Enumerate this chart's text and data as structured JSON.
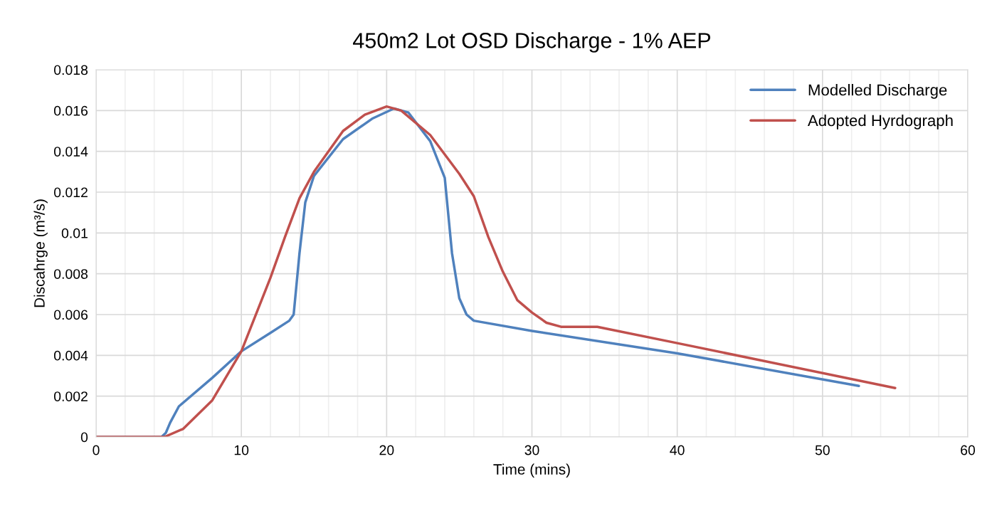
{
  "chart_data": {
    "type": "line",
    "title": "450m2 Lot OSD Discharge - 1% AEP",
    "xlabel": "Time (mins)",
    "ylabel": "Discahrge (m³/s)",
    "xlim": [
      0,
      60
    ],
    "ylim": [
      0,
      0.018
    ],
    "xticks": [
      0,
      {
        "value": 2,
        "label": null
      },
      {
        "value": 4,
        "label": null
      },
      {
        "value": 6,
        "label": null
      },
      {
        "value": 8,
        "label": null
      },
      10,
      {
        "value": 12,
        "label": null
      },
      {
        "value": 14,
        "label": null
      },
      {
        "value": 16,
        "label": null
      },
      {
        "value": 18,
        "label": null
      },
      20,
      {
        "value": 22,
        "label": null
      },
      {
        "value": 24,
        "label": null
      },
      {
        "value": 26,
        "label": null
      },
      {
        "value": 28,
        "label": null
      },
      30,
      {
        "value": 32,
        "label": null
      },
      {
        "value": 34,
        "label": null
      },
      {
        "value": 36,
        "label": null
      },
      {
        "value": 38,
        "label": null
      },
      40,
      {
        "value": 42,
        "label": null
      },
      {
        "value": 44,
        "label": null
      },
      {
        "value": 46,
        "label": null
      },
      {
        "value": 48,
        "label": null
      },
      50,
      {
        "value": 52,
        "label": null
      },
      {
        "value": 54,
        "label": null
      },
      {
        "value": 56,
        "label": null
      },
      {
        "value": 58,
        "label": null
      },
      60
    ],
    "yticks": [
      0,
      0.002,
      0.004,
      0.006,
      0.008,
      0.01,
      0.012,
      0.014,
      0.016,
      0.018
    ],
    "grid": true,
    "legend": "top right",
    "line_style": "solid",
    "marker": "none",
    "series": [
      {
        "name": "Modelled Discharge",
        "color": "#4f81bd",
        "x": [
          0,
          4.5,
          4.8,
          5.1,
          5.7,
          8,
          10,
          12,
          13.3,
          13.6,
          14,
          14.4,
          15,
          17,
          19,
          20.5,
          21.5,
          23,
          24,
          24.5,
          25,
          25.5,
          26,
          30,
          40,
          52.5
        ],
        "values": [
          0,
          0,
          0.0002,
          0.0007,
          0.0015,
          0.0029,
          0.0042,
          0.0051,
          0.0057,
          0.006,
          0.009,
          0.0115,
          0.0128,
          0.0146,
          0.0156,
          0.0161,
          0.0159,
          0.0145,
          0.0127,
          0.009,
          0.0068,
          0.006,
          0.0057,
          0.0052,
          0.0041,
          0.0025
        ]
      },
      {
        "name": "Adopted Hyrdograph",
        "color": "#c0504d",
        "x": [
          0,
          4.7,
          6,
          8,
          10,
          12,
          13,
          14,
          15,
          17,
          18.5,
          20,
          21,
          23,
          25,
          26,
          27,
          28,
          29,
          30,
          31,
          32,
          33,
          34.5,
          40,
          55
        ],
        "values": [
          0,
          0,
          0.0004,
          0.0018,
          0.0042,
          0.0078,
          0.0098,
          0.0117,
          0.013,
          0.015,
          0.0158,
          0.0162,
          0.016,
          0.0148,
          0.0129,
          0.0118,
          0.0098,
          0.0081,
          0.0067,
          0.0061,
          0.0056,
          0.0054,
          0.0054,
          0.0054,
          0.0046,
          0.0024
        ]
      }
    ]
  }
}
